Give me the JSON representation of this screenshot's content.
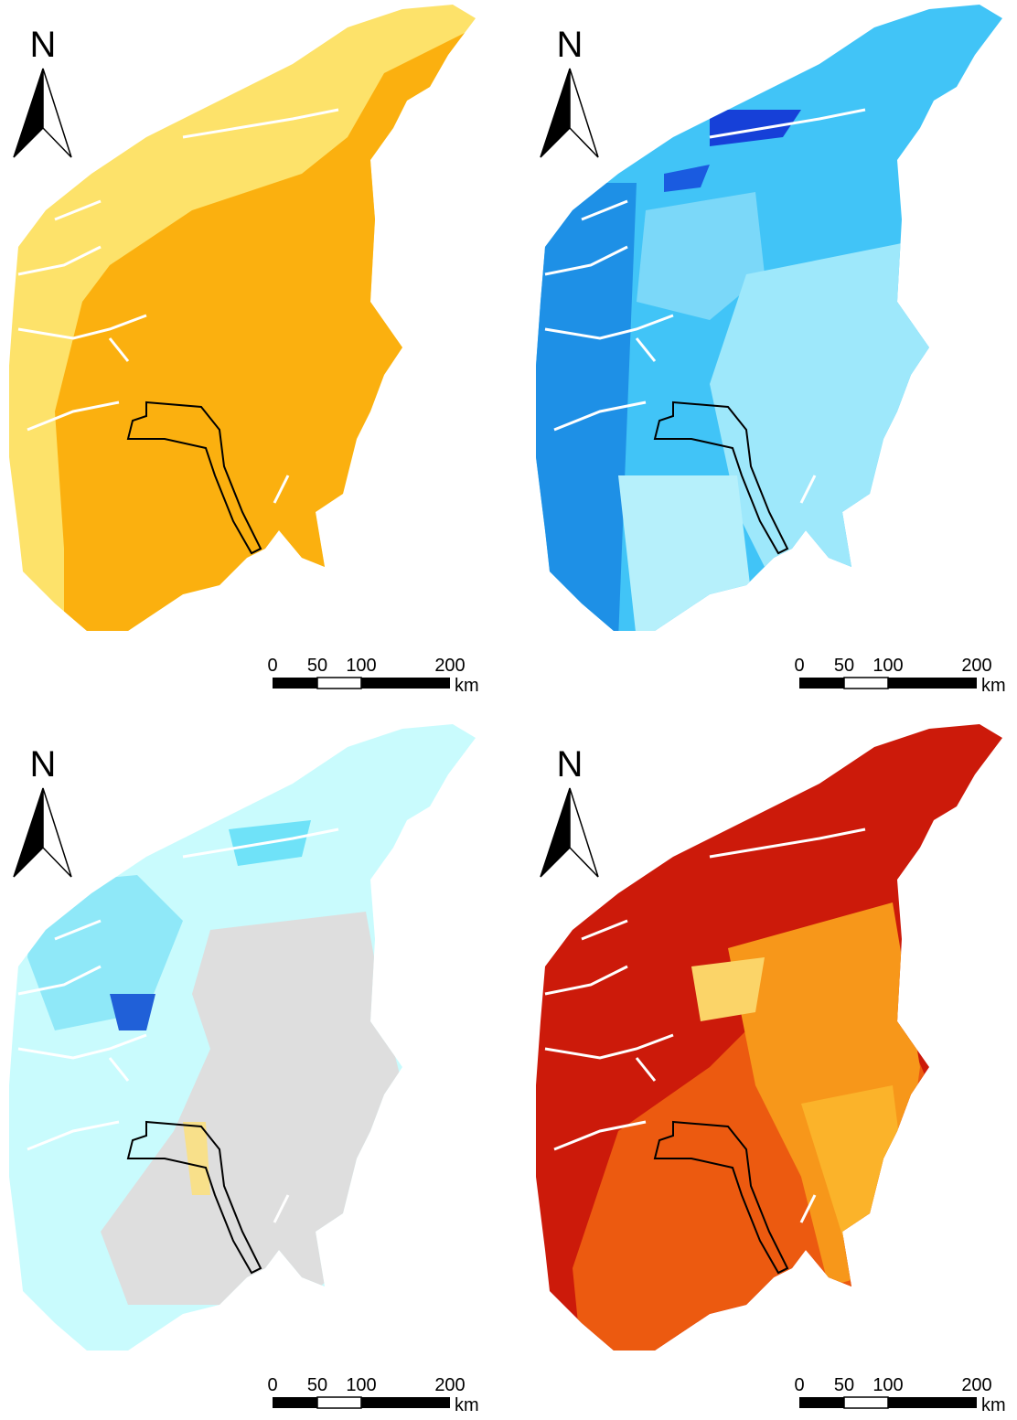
{
  "panels": [
    {
      "north": "N",
      "scale": {
        "labels": [
          "0",
          "50",
          "100",
          "200"
        ],
        "unit": "km"
      }
    },
    {
      "north": "N",
      "scale": {
        "labels": [
          "0",
          "50",
          "100",
          "200"
        ],
        "unit": "km"
      }
    },
    {
      "north": "N",
      "scale": {
        "labels": [
          "0",
          "50",
          "100",
          "200"
        ],
        "unit": "km"
      }
    },
    {
      "north": "N",
      "scale": {
        "labels": [
          "0",
          "50",
          "100",
          "200"
        ],
        "unit": "km"
      }
    }
  ]
}
